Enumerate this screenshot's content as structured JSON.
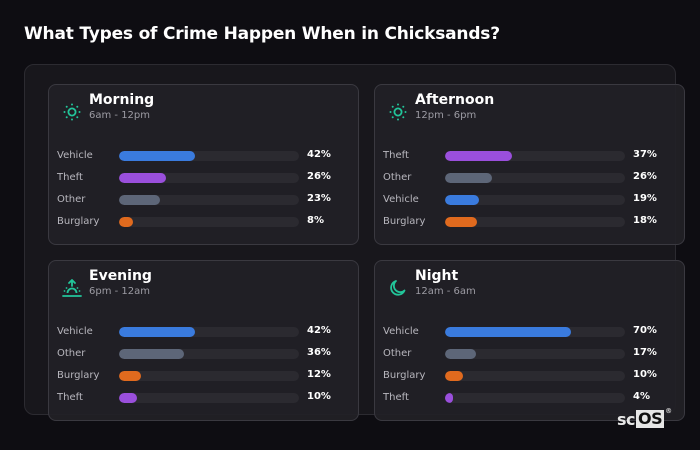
{
  "title": "What Types of Crime Happen When in Chicksands?",
  "colors": {
    "Vehicle": "#3a7bde",
    "Theft": "#9a4fdc",
    "Other": "#5d6678",
    "Burglary": "#e06a1e",
    "icon_accent": "#22c59a"
  },
  "cards": [
    {
      "title": "Morning",
      "subtitle": "6am - 12pm",
      "icon": "sun-icon",
      "rows": [
        {
          "label": "Vehicle",
          "value": "42%"
        },
        {
          "label": "Theft",
          "value": "26%"
        },
        {
          "label": "Other",
          "value": "23%"
        },
        {
          "label": "Burglary",
          "value": "8%"
        }
      ]
    },
    {
      "title": "Afternoon",
      "subtitle": "12pm - 6pm",
      "icon": "sun-icon",
      "rows": [
        {
          "label": "Theft",
          "value": "37%"
        },
        {
          "label": "Other",
          "value": "26%"
        },
        {
          "label": "Vehicle",
          "value": "19%"
        },
        {
          "label": "Burglary",
          "value": "18%"
        }
      ]
    },
    {
      "title": "Evening",
      "subtitle": "6pm - 12am",
      "icon": "sunset-icon",
      "rows": [
        {
          "label": "Vehicle",
          "value": "42%"
        },
        {
          "label": "Other",
          "value": "36%"
        },
        {
          "label": "Burglary",
          "value": "12%"
        },
        {
          "label": "Theft",
          "value": "10%"
        }
      ]
    },
    {
      "title": "Night",
      "subtitle": "12am - 6am",
      "icon": "moon-icon",
      "rows": [
        {
          "label": "Vehicle",
          "value": "70%"
        },
        {
          "label": "Other",
          "value": "17%"
        },
        {
          "label": "Burglary",
          "value": "10%"
        },
        {
          "label": "Theft",
          "value": "4%"
        }
      ]
    }
  ],
  "logo": {
    "sc": "sc",
    "os": "OS",
    "reg": "®"
  },
  "chart_data": [
    {
      "type": "bar",
      "title": "Morning (6am - 12pm)",
      "categories": [
        "Vehicle",
        "Theft",
        "Other",
        "Burglary"
      ],
      "values": [
        42,
        26,
        23,
        8
      ],
      "unit": "%",
      "ylim": [
        0,
        100
      ]
    },
    {
      "type": "bar",
      "title": "Afternoon (12pm - 6pm)",
      "categories": [
        "Theft",
        "Other",
        "Vehicle",
        "Burglary"
      ],
      "values": [
        37,
        26,
        19,
        18
      ],
      "unit": "%",
      "ylim": [
        0,
        100
      ]
    },
    {
      "type": "bar",
      "title": "Evening (6pm - 12am)",
      "categories": [
        "Vehicle",
        "Other",
        "Burglary",
        "Theft"
      ],
      "values": [
        42,
        36,
        12,
        10
      ],
      "unit": "%",
      "ylim": [
        0,
        100
      ]
    },
    {
      "type": "bar",
      "title": "Night (12am - 6am)",
      "categories": [
        "Vehicle",
        "Other",
        "Burglary",
        "Theft"
      ],
      "values": [
        70,
        17,
        10,
        4
      ],
      "unit": "%",
      "ylim": [
        0,
        100
      ]
    }
  ]
}
